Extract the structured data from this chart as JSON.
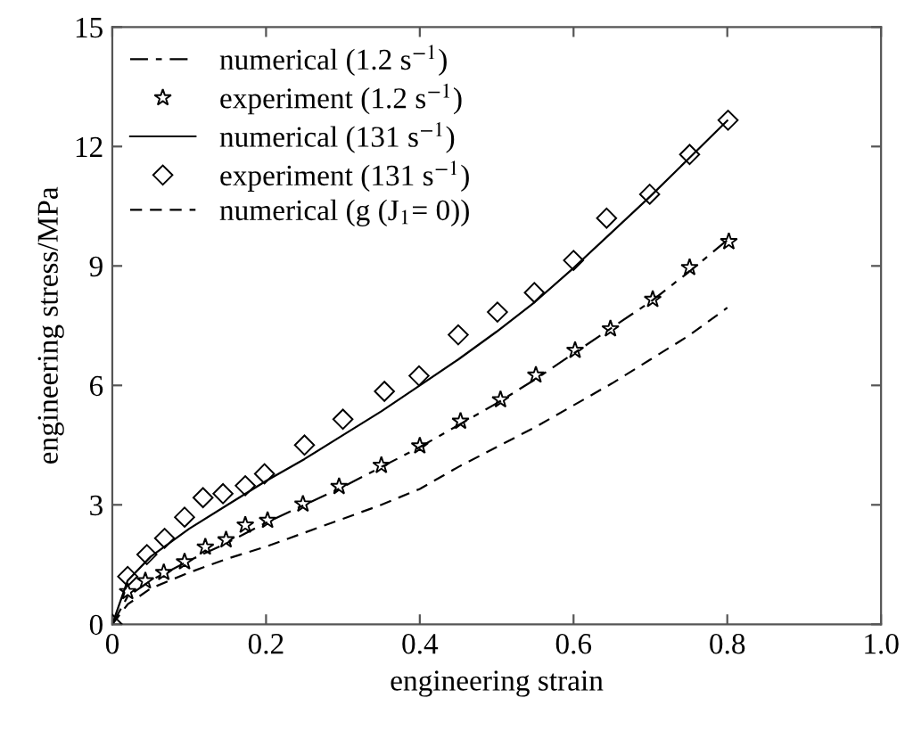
{
  "chart_data": {
    "type": "line",
    "xlabel": "engineering strain",
    "ylabel": "engineering stress/MPa",
    "xlim": [
      0,
      1.0
    ],
    "xticks": [
      0,
      0.2,
      0.4,
      0.6,
      0.8,
      {
        "value": 1,
        "label": "1.0"
      }
    ],
    "ylim": [
      0,
      15
    ],
    "yticks": [
      0,
      3,
      6,
      9,
      12,
      15
    ],
    "grid": false,
    "legend": "top left",
    "series": [
      {
        "name": "numerical (1.2 s$^{−1}$)",
        "line_style": "dashed",
        "marker": "none",
        "color": "#000000",
        "x": [
          0,
          0.02,
          0.05,
          0.1,
          0.15,
          0.2,
          0.25,
          0.3,
          0.35,
          0.4,
          0.45,
          0.5,
          0.55,
          0.6,
          0.65,
          0.7,
          0.75,
          0.8
        ],
        "values": [
          0,
          0.7,
          1.1,
          1.6,
          2.05,
          2.55,
          3.0,
          3.45,
          3.95,
          4.45,
          5.0,
          5.55,
          6.15,
          6.8,
          7.45,
          8.1,
          8.85,
          9.65
        ]
      },
      {
        "name": "experiment (1.2 s$^{−1}$)",
        "type": "scatter",
        "marker": "star",
        "color": "#000000",
        "x": [
          0.02,
          0.043,
          0.067,
          0.094,
          0.121,
          0.148,
          0.173,
          0.202,
          0.248,
          0.295,
          0.35,
          0.4,
          0.453,
          0.505,
          0.551,
          0.602,
          0.648,
          0.703,
          0.751,
          0.802
        ],
        "values": [
          0.82,
          1.09,
          1.3,
          1.57,
          1.94,
          2.12,
          2.49,
          2.61,
          3.02,
          3.46,
          3.99,
          4.48,
          5.1,
          5.64,
          6.26,
          6.88,
          7.42,
          8.16,
          8.96,
          9.61
        ]
      },
      {
        "name": "numerical (131 s$^{−1}$)",
        "line_style": "solid",
        "marker": "none",
        "color": "#000000",
        "x": [
          0,
          0.02,
          0.05,
          0.1,
          0.15,
          0.2,
          0.25,
          0.3,
          0.35,
          0.4,
          0.45,
          0.5,
          0.55,
          0.6,
          0.65,
          0.7,
          0.75,
          0.8
        ],
        "values": [
          0,
          1.1,
          1.7,
          2.4,
          3.0,
          3.6,
          4.15,
          4.75,
          5.35,
          6.0,
          6.65,
          7.35,
          8.1,
          8.95,
          9.85,
          10.75,
          11.7,
          12.65
        ]
      },
      {
        "name": "experiment (131 s$^{−1}$)",
        "type": "scatter",
        "marker": "diamond",
        "color": "#000000",
        "x": [
          0,
          0.02,
          0.045,
          0.068,
          0.094,
          0.118,
          0.144,
          0.173,
          0.198,
          0.25,
          0.3,
          0.354,
          0.399,
          0.45,
          0.501,
          0.549,
          0.6,
          0.643,
          0.699,
          0.751,
          0.801
        ],
        "values": [
          0,
          1.2,
          1.75,
          2.16,
          2.69,
          3.18,
          3.28,
          3.48,
          3.78,
          4.5,
          5.15,
          5.85,
          6.24,
          7.27,
          7.84,
          8.33,
          9.14,
          10.2,
          10.8,
          11.8,
          12.66
        ]
      },
      {
        "name": "numerical (g (J$_{1}$= 0))",
        "line_style": "dashed",
        "marker": "none",
        "color": "#000000",
        "x": [
          0,
          0.02,
          0.05,
          0.1,
          0.15,
          0.2,
          0.25,
          0.3,
          0.35,
          0.4,
          0.45,
          0.5,
          0.55,
          0.6,
          0.65,
          0.7,
          0.75,
          0.8
        ],
        "values": [
          0,
          0.5,
          0.9,
          1.3,
          1.65,
          1.95,
          2.3,
          2.65,
          3.0,
          3.4,
          3.95,
          4.45,
          4.95,
          5.5,
          6.05,
          6.65,
          7.25,
          7.95
        ]
      }
    ]
  }
}
